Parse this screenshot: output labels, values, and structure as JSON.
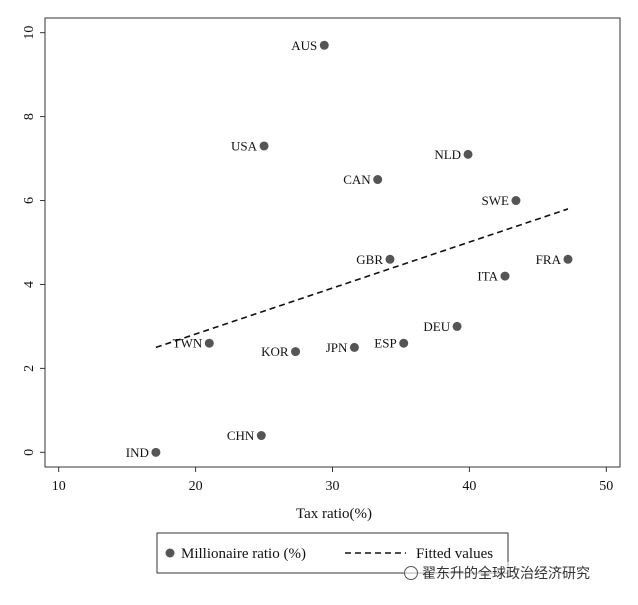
{
  "chart_data": {
    "type": "scatter",
    "xlabel": "Tax ratio(%)",
    "ylabel": "",
    "xlim": [
      9,
      51
    ],
    "ylim": [
      -0.35,
      10.35
    ],
    "x_ticks": [
      10,
      20,
      30,
      40,
      50
    ],
    "y_ticks": [
      0,
      2,
      4,
      6,
      8,
      10
    ],
    "grid": false,
    "series": [
      {
        "name": "Millionaire ratio (%)",
        "kind": "points",
        "color": "#555555",
        "points": [
          {
            "label": "AUS",
            "x": 29.4,
            "y": 9.7
          },
          {
            "label": "USA",
            "x": 25.0,
            "y": 7.3
          },
          {
            "label": "NLD",
            "x": 39.9,
            "y": 7.1
          },
          {
            "label": "CAN",
            "x": 33.3,
            "y": 6.5
          },
          {
            "label": "SWE",
            "x": 43.4,
            "y": 6.0
          },
          {
            "label": "GBR",
            "x": 34.2,
            "y": 4.6
          },
          {
            "label": "FRA",
            "x": 47.2,
            "y": 4.6
          },
          {
            "label": "ITA",
            "x": 42.6,
            "y": 4.2
          },
          {
            "label": "DEU",
            "x": 39.1,
            "y": 3.0
          },
          {
            "label": "TWN",
            "x": 21.0,
            "y": 2.6
          },
          {
            "label": "ESP",
            "x": 35.2,
            "y": 2.6
          },
          {
            "label": "JPN",
            "x": 31.6,
            "y": 2.5
          },
          {
            "label": "KOR",
            "x": 27.3,
            "y": 2.4
          },
          {
            "label": "CHN",
            "x": 24.8,
            "y": 0.4
          },
          {
            "label": "IND",
            "x": 17.1,
            "y": 0.0
          }
        ]
      },
      {
        "name": "Fitted values",
        "kind": "dashed-line",
        "color": "#111111",
        "x": [
          17.1,
          47.2
        ],
        "y": [
          2.5,
          5.8
        ]
      }
    ],
    "legend": [
      "Millionaire ratio (%)",
      "Fitted values"
    ],
    "legend_position": "bottom"
  },
  "watermark": {
    "text": "翟东升的全球政治经济研究"
  }
}
